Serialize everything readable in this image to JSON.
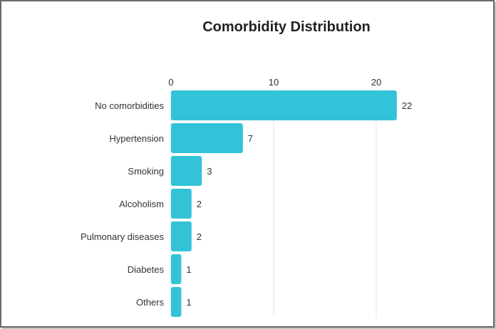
{
  "chart_data": {
    "type": "bar",
    "orientation": "horizontal",
    "title": "Comorbidity Distribution",
    "categories": [
      "No comorbidities",
      "Hypertension",
      "Smoking",
      "Alcoholism",
      "Pulmonary diseases",
      "Diabetes",
      "Others"
    ],
    "values": [
      22,
      7,
      3,
      2,
      2,
      1,
      1
    ],
    "xticks": [
      0,
      10,
      20
    ],
    "xlim": [
      0,
      23
    ],
    "xaxis_position": "top",
    "grid": true,
    "data_labels": true,
    "colors": {
      "bar": "#33c3d8",
      "grid": "#e6e6e6"
    }
  }
}
